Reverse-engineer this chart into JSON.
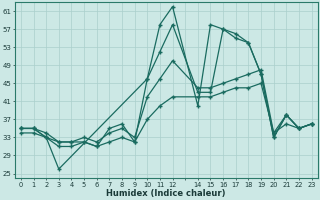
{
  "xlabel": "Humidex (Indice chaleur)",
  "bg_color": "#cce8e5",
  "grid_color": "#aacfcc",
  "line_color": "#1a6b60",
  "xlim": [
    -0.5,
    23.5
  ],
  "ylim": [
    24,
    63
  ],
  "yticks": [
    25,
    29,
    33,
    37,
    41,
    45,
    49,
    53,
    57,
    61
  ],
  "xtick_labels": [
    "0",
    "1",
    "2",
    "3",
    "4",
    "5",
    "6",
    "7",
    "8",
    "9",
    "10",
    "11",
    "12",
    "",
    "14",
    "15",
    "16",
    "17",
    "18",
    "19",
    "20",
    "21",
    "22",
    "23"
  ],
  "line1_x": [
    0,
    1,
    2,
    3,
    10,
    11,
    12,
    14,
    15,
    16,
    17,
    18,
    19,
    20,
    21,
    22,
    23
  ],
  "line1_y": [
    35,
    35,
    33,
    26,
    46,
    58,
    62,
    40,
    58,
    57,
    55,
    54,
    47,
    33,
    38,
    35,
    36
  ],
  "line2_x": [
    0,
    1,
    2,
    3,
    4,
    5,
    6,
    7,
    8,
    9,
    10,
    11,
    12,
    14,
    15,
    16,
    17,
    18,
    19,
    20,
    21,
    22,
    23
  ],
  "line2_y": [
    35,
    35,
    33,
    32,
    32,
    32,
    31,
    35,
    36,
    32,
    46,
    52,
    58,
    43,
    43,
    57,
    56,
    54,
    47,
    33,
    38,
    35,
    36
  ],
  "line3_x": [
    0,
    1,
    2,
    3,
    4,
    5,
    6,
    7,
    8,
    9,
    10,
    11,
    12,
    14,
    15,
    16,
    17,
    18,
    19,
    20,
    21,
    22,
    23
  ],
  "line3_y": [
    35,
    35,
    34,
    32,
    32,
    33,
    32,
    34,
    35,
    33,
    42,
    46,
    50,
    44,
    44,
    45,
    46,
    47,
    48,
    34,
    38,
    35,
    36
  ],
  "line4_x": [
    0,
    1,
    2,
    3,
    4,
    5,
    6,
    7,
    8,
    9,
    10,
    11,
    12,
    14,
    15,
    16,
    17,
    18,
    19,
    20,
    21,
    22,
    23
  ],
  "line4_y": [
    34,
    34,
    33,
    31,
    31,
    32,
    31,
    32,
    33,
    32,
    37,
    40,
    42,
    42,
    42,
    43,
    44,
    44,
    45,
    34,
    36,
    35,
    36
  ]
}
